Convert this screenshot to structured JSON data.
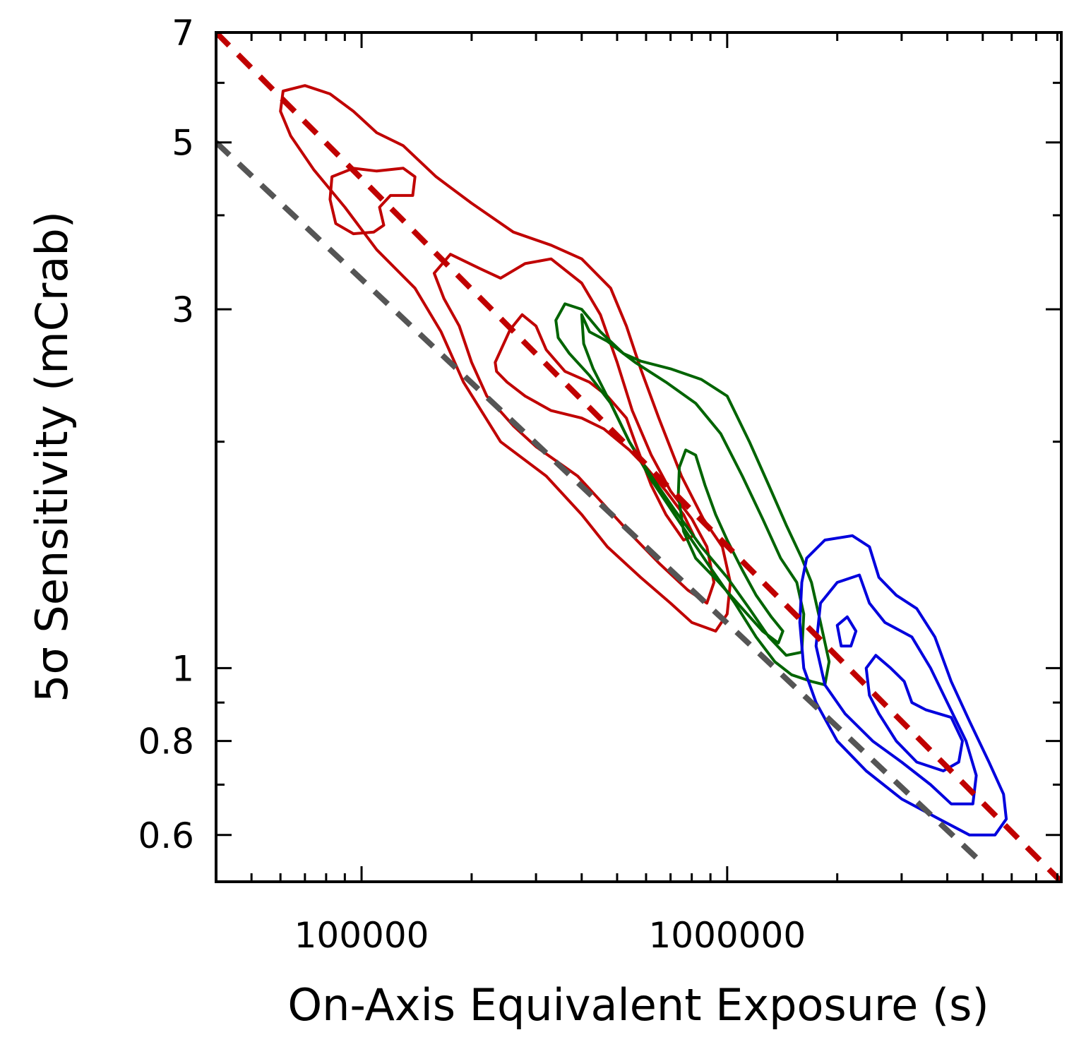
{
  "chart_data": {
    "type": "line",
    "xscale": "log",
    "yscale": "log",
    "xlabel": "On-Axis Equivalent Exposure (s)",
    "ylabel": "5σ Sensitivity (mCrab)",
    "xlim": [
      40000,
      8200000
    ],
    "ylim": [
      0.52,
      7
    ],
    "x_tick_labels": [
      {
        "value": 100000,
        "label": "100000"
      },
      {
        "value": 1000000,
        "label": "1000000"
      }
    ],
    "y_tick_labels": [
      {
        "value": 7,
        "label": "7"
      },
      {
        "value": 5,
        "label": "5"
      },
      {
        "value": 3,
        "label": "3"
      },
      {
        "value": 1,
        "label": "1"
      },
      {
        "value": 0.8,
        "label": "0.8"
      },
      {
        "value": 0.6,
        "label": "0.6"
      }
    ],
    "x_minor_ticks": [
      50000,
      60000,
      70000,
      80000,
      90000,
      200000,
      300000,
      400000,
      500000,
      600000,
      700000,
      800000,
      900000,
      2000000,
      3000000,
      4000000,
      5000000,
      6000000,
      7000000,
      8000000
    ],
    "y_minor_ticks": [
      0.7,
      0.9,
      2,
      4,
      6
    ],
    "colors": {
      "red": "#c00000",
      "gray": "#555555",
      "green": "#006400",
      "blue": "#0000dd"
    },
    "series": [
      {
        "name": "red-dashed-fit",
        "style": "dashed",
        "color": "red",
        "x": [
          40000,
          8200000
        ],
        "y": [
          7.0,
          0.52
        ]
      },
      {
        "name": "gray-dashed-limit",
        "style": "dashed",
        "color": "gray",
        "x": [
          40000,
          4800000
        ],
        "y": [
          5.0,
          0.56
        ]
      }
    ],
    "contours": [
      {
        "group": "red",
        "level": "outer",
        "points": [
          [
            61000,
            5.85
          ],
          [
            70000,
            5.95
          ],
          [
            82000,
            5.8
          ],
          [
            95000,
            5.5
          ],
          [
            110000,
            5.15
          ],
          [
            130000,
            4.95
          ],
          [
            160000,
            4.5
          ],
          [
            200000,
            4.15
          ],
          [
            260000,
            3.8
          ],
          [
            330000,
            3.65
          ],
          [
            400000,
            3.5
          ],
          [
            480000,
            3.2
          ],
          [
            530000,
            2.85
          ],
          [
            580000,
            2.5
          ],
          [
            650000,
            2.15
          ],
          [
            750000,
            1.8
          ],
          [
            860000,
            1.58
          ],
          [
            970000,
            1.45
          ],
          [
            1020000,
            1.3
          ],
          [
            1000000,
            1.18
          ],
          [
            930000,
            1.12
          ],
          [
            800000,
            1.15
          ],
          [
            700000,
            1.22
          ],
          [
            580000,
            1.32
          ],
          [
            470000,
            1.45
          ],
          [
            400000,
            1.6
          ],
          [
            320000,
            1.8
          ],
          [
            240000,
            2.0
          ],
          [
            190000,
            2.4
          ],
          [
            165000,
            2.8
          ],
          [
            140000,
            3.2
          ],
          [
            110000,
            3.6
          ],
          [
            90000,
            4.1
          ],
          [
            74000,
            4.6
          ],
          [
            64000,
            5.1
          ],
          [
            60000,
            5.5
          ]
        ]
      },
      {
        "group": "red",
        "level": "mid-upper",
        "points": [
          [
            83000,
            4.5
          ],
          [
            95000,
            4.62
          ],
          [
            110000,
            4.58
          ],
          [
            130000,
            4.62
          ],
          [
            140000,
            4.5
          ],
          [
            138000,
            4.25
          ],
          [
            120000,
            4.25
          ],
          [
            112000,
            4.1
          ],
          [
            115000,
            3.88
          ],
          [
            108000,
            3.8
          ],
          [
            95000,
            3.78
          ],
          [
            85000,
            3.9
          ],
          [
            82000,
            4.2
          ]
        ]
      },
      {
        "group": "red",
        "level": "mid-lower",
        "points": [
          [
            158000,
            3.35
          ],
          [
            175000,
            3.55
          ],
          [
            210000,
            3.4
          ],
          [
            240000,
            3.3
          ],
          [
            280000,
            3.45
          ],
          [
            330000,
            3.5
          ],
          [
            400000,
            3.25
          ],
          [
            450000,
            2.95
          ],
          [
            500000,
            2.55
          ],
          [
            550000,
            2.2
          ],
          [
            620000,
            1.92
          ],
          [
            700000,
            1.72
          ],
          [
            800000,
            1.58
          ],
          [
            880000,
            1.45
          ],
          [
            920000,
            1.3
          ],
          [
            880000,
            1.22
          ],
          [
            780000,
            1.27
          ],
          [
            650000,
            1.38
          ],
          [
            550000,
            1.5
          ],
          [
            460000,
            1.65
          ],
          [
            390000,
            1.8
          ],
          [
            300000,
            1.97
          ],
          [
            260000,
            2.1
          ],
          [
            220000,
            2.3
          ],
          [
            200000,
            2.55
          ],
          [
            185000,
            2.85
          ],
          [
            168000,
            3.1
          ]
        ]
      },
      {
        "group": "red",
        "level": "inner",
        "points": [
          [
            232000,
            2.55
          ],
          [
            255000,
            2.82
          ],
          [
            275000,
            2.95
          ],
          [
            300000,
            2.85
          ],
          [
            320000,
            2.65
          ],
          [
            360000,
            2.48
          ],
          [
            420000,
            2.4
          ],
          [
            470000,
            2.3
          ],
          [
            530000,
            2.15
          ],
          [
            570000,
            1.95
          ],
          [
            620000,
            1.75
          ],
          [
            680000,
            1.6
          ],
          [
            760000,
            1.48
          ],
          [
            810000,
            1.5
          ],
          [
            760000,
            1.6
          ],
          [
            680000,
            1.72
          ],
          [
            600000,
            1.85
          ],
          [
            540000,
            1.95
          ],
          [
            460000,
            2.08
          ],
          [
            400000,
            2.15
          ],
          [
            330000,
            2.2
          ],
          [
            280000,
            2.3
          ],
          [
            250000,
            2.4
          ],
          [
            234000,
            2.48
          ]
        ]
      },
      {
        "group": "green",
        "level": "outer",
        "points": [
          [
            340000,
            2.9
          ],
          [
            360000,
            3.05
          ],
          [
            400000,
            3.0
          ],
          [
            450000,
            2.8
          ],
          [
            520000,
            2.62
          ],
          [
            580000,
            2.56
          ],
          [
            700000,
            2.5
          ],
          [
            850000,
            2.42
          ],
          [
            1000000,
            2.3
          ],
          [
            1150000,
            2.0
          ],
          [
            1300000,
            1.75
          ],
          [
            1450000,
            1.55
          ],
          [
            1600000,
            1.4
          ],
          [
            1700000,
            1.3
          ],
          [
            1800000,
            1.15
          ],
          [
            1900000,
            1.02
          ],
          [
            1850000,
            0.95
          ],
          [
            1700000,
            0.96
          ],
          [
            1500000,
            0.98
          ],
          [
            1350000,
            1.02
          ],
          [
            1200000,
            1.1
          ],
          [
            1050000,
            1.22
          ],
          [
            900000,
            1.36
          ],
          [
            750000,
            1.55
          ],
          [
            620000,
            1.78
          ],
          [
            540000,
            2.0
          ],
          [
            480000,
            2.25
          ],
          [
            420000,
            2.45
          ],
          [
            370000,
            2.62
          ],
          [
            345000,
            2.75
          ]
        ]
      },
      {
        "group": "green",
        "level": "mid",
        "points": [
          [
            400000,
            2.95
          ],
          [
            420000,
            2.8
          ],
          [
            470000,
            2.72
          ],
          [
            560000,
            2.55
          ],
          [
            680000,
            2.4
          ],
          [
            820000,
            2.25
          ],
          [
            960000,
            2.05
          ],
          [
            1100000,
            1.8
          ],
          [
            1250000,
            1.58
          ],
          [
            1400000,
            1.4
          ],
          [
            1550000,
            1.3
          ],
          [
            1620000,
            1.18
          ],
          [
            1600000,
            1.05
          ],
          [
            1450000,
            1.04
          ],
          [
            1300000,
            1.1
          ],
          [
            1150000,
            1.2
          ],
          [
            1000000,
            1.32
          ],
          [
            850000,
            1.45
          ],
          [
            720000,
            1.62
          ],
          [
            620000,
            1.8
          ],
          [
            540000,
            2.0
          ],
          [
            480000,
            2.25
          ],
          [
            430000,
            2.5
          ],
          [
            405000,
            2.7
          ]
        ]
      },
      {
        "group": "green",
        "level": "inner",
        "points": [
          [
            740000,
            1.85
          ],
          [
            770000,
            1.95
          ],
          [
            820000,
            1.92
          ],
          [
            870000,
            1.75
          ],
          [
            930000,
            1.6
          ],
          [
            1000000,
            1.48
          ],
          [
            1100000,
            1.35
          ],
          [
            1200000,
            1.25
          ],
          [
            1320000,
            1.17
          ],
          [
            1420000,
            1.12
          ],
          [
            1380000,
            1.08
          ],
          [
            1250000,
            1.12
          ],
          [
            1100000,
            1.2
          ],
          [
            950000,
            1.3
          ],
          [
            820000,
            1.4
          ],
          [
            760000,
            1.52
          ],
          [
            735000,
            1.7
          ]
        ]
      },
      {
        "group": "blue",
        "level": "outer",
        "points": [
          [
            1650000,
            1.4
          ],
          [
            1850000,
            1.48
          ],
          [
            2200000,
            1.5
          ],
          [
            2450000,
            1.45
          ],
          [
            2600000,
            1.32
          ],
          [
            2900000,
            1.25
          ],
          [
            3300000,
            1.2
          ],
          [
            3700000,
            1.1
          ],
          [
            4100000,
            0.96
          ],
          [
            4600000,
            0.85
          ],
          [
            5200000,
            0.75
          ],
          [
            5700000,
            0.68
          ],
          [
            5800000,
            0.63
          ],
          [
            5400000,
            0.6
          ],
          [
            4600000,
            0.6
          ],
          [
            3800000,
            0.63
          ],
          [
            3000000,
            0.67
          ],
          [
            2400000,
            0.73
          ],
          [
            2000000,
            0.8
          ],
          [
            1750000,
            0.9
          ],
          [
            1620000,
            1.0
          ],
          [
            1580000,
            1.15
          ],
          [
            1600000,
            1.3
          ]
        ]
      },
      {
        "group": "blue",
        "level": "mid",
        "points": [
          [
            1800000,
            1.22
          ],
          [
            2000000,
            1.3
          ],
          [
            2300000,
            1.33
          ],
          [
            2450000,
            1.22
          ],
          [
            2700000,
            1.15
          ],
          [
            3200000,
            1.1
          ],
          [
            3600000,
            1.0
          ],
          [
            4000000,
            0.9
          ],
          [
            4500000,
            0.8
          ],
          [
            4800000,
            0.72
          ],
          [
            4700000,
            0.66
          ],
          [
            4100000,
            0.66
          ],
          [
            3600000,
            0.7
          ],
          [
            3000000,
            0.75
          ],
          [
            2500000,
            0.8
          ],
          [
            2100000,
            0.87
          ],
          [
            1850000,
            0.95
          ],
          [
            1750000,
            1.07
          ]
        ]
      },
      {
        "group": "blue",
        "level": "inner-small",
        "points": [
          [
            2000000,
            1.14
          ],
          [
            2130000,
            1.17
          ],
          [
            2250000,
            1.12
          ],
          [
            2180000,
            1.07
          ],
          [
            2050000,
            1.07
          ]
        ]
      },
      {
        "group": "blue",
        "level": "inner",
        "points": [
          [
            2400000,
            1.0
          ],
          [
            2550000,
            1.04
          ],
          [
            2800000,
            1.0
          ],
          [
            3050000,
            0.96
          ],
          [
            3200000,
            0.9
          ],
          [
            3500000,
            0.88
          ],
          [
            4100000,
            0.86
          ],
          [
            4400000,
            0.8
          ],
          [
            4300000,
            0.75
          ],
          [
            3900000,
            0.73
          ],
          [
            3300000,
            0.75
          ],
          [
            2900000,
            0.8
          ],
          [
            2600000,
            0.87
          ],
          [
            2450000,
            0.92
          ]
        ]
      }
    ]
  }
}
